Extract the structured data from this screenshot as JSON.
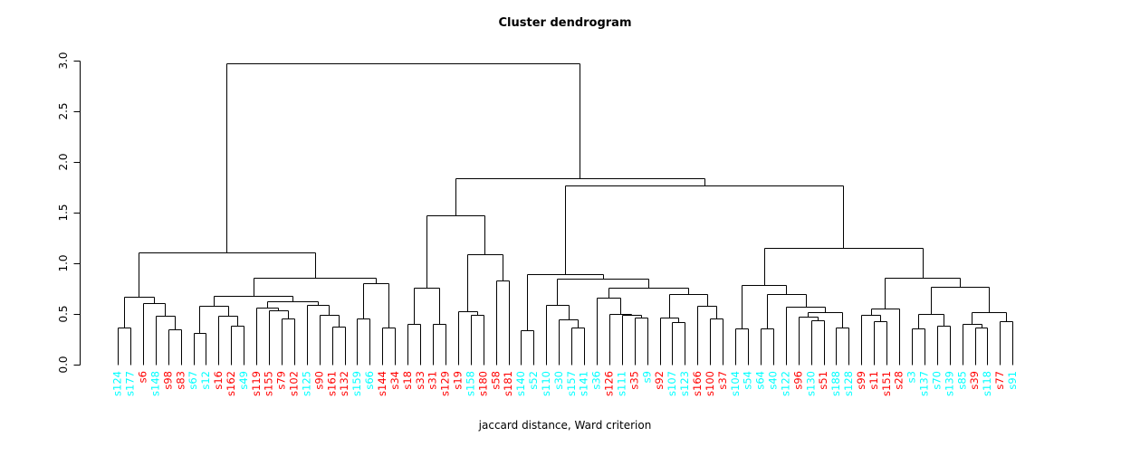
{
  "chart_data": {
    "type": "dendrogram",
    "title": "Cluster dendrogram",
    "xlabel": "jaccard distance, Ward criterion",
    "ylabel": "",
    "ylim": [
      0,
      3
    ],
    "yticks": [
      "0.0",
      "0.5",
      "1.0",
      "1.5",
      "2.0",
      "2.5",
      "3.0"
    ],
    "grid": false,
    "line_color": "#000000",
    "root_height": 2.97,
    "palette": {
      "c": "#00FFFF",
      "r": "#FF0000"
    },
    "leaves": [
      {
        "label": "s124",
        "color": "c"
      },
      {
        "label": "s177",
        "color": "c"
      },
      {
        "label": "s6",
        "color": "r"
      },
      {
        "label": "s148",
        "color": "c"
      },
      {
        "label": "s98",
        "color": "r"
      },
      {
        "label": "s83",
        "color": "r"
      },
      {
        "label": "s67",
        "color": "c"
      },
      {
        "label": "s12",
        "color": "c"
      },
      {
        "label": "s16",
        "color": "r"
      },
      {
        "label": "s162",
        "color": "r"
      },
      {
        "label": "s49",
        "color": "c"
      },
      {
        "label": "s119",
        "color": "r"
      },
      {
        "label": "s155",
        "color": "r"
      },
      {
        "label": "s79",
        "color": "r"
      },
      {
        "label": "s102",
        "color": "r"
      },
      {
        "label": "s125",
        "color": "c"
      },
      {
        "label": "s90",
        "color": "r"
      },
      {
        "label": "s161",
        "color": "r"
      },
      {
        "label": "s132",
        "color": "r"
      },
      {
        "label": "s159",
        "color": "c"
      },
      {
        "label": "s66",
        "color": "c"
      },
      {
        "label": "s144",
        "color": "r"
      },
      {
        "label": "s34",
        "color": "r"
      },
      {
        "label": "s18",
        "color": "r"
      },
      {
        "label": "s33",
        "color": "r"
      },
      {
        "label": "s31",
        "color": "r"
      },
      {
        "label": "s129",
        "color": "r"
      },
      {
        "label": "s19",
        "color": "r"
      },
      {
        "label": "s158",
        "color": "c"
      },
      {
        "label": "s180",
        "color": "r"
      },
      {
        "label": "s58",
        "color": "r"
      },
      {
        "label": "s181",
        "color": "r"
      },
      {
        "label": "s140",
        "color": "c"
      },
      {
        "label": "s52",
        "color": "c"
      },
      {
        "label": "s110",
        "color": "c"
      },
      {
        "label": "s30",
        "color": "c"
      },
      {
        "label": "s157",
        "color": "c"
      },
      {
        "label": "s141",
        "color": "c"
      },
      {
        "label": "s36",
        "color": "c"
      },
      {
        "label": "s126",
        "color": "r"
      },
      {
        "label": "s111",
        "color": "c"
      },
      {
        "label": "s35",
        "color": "r"
      },
      {
        "label": "s9",
        "color": "c"
      },
      {
        "label": "s92",
        "color": "r"
      },
      {
        "label": "s107",
        "color": "c"
      },
      {
        "label": "s123",
        "color": "c"
      },
      {
        "label": "s166",
        "color": "r"
      },
      {
        "label": "s100",
        "color": "r"
      },
      {
        "label": "s37",
        "color": "r"
      },
      {
        "label": "s104",
        "color": "c"
      },
      {
        "label": "s54",
        "color": "c"
      },
      {
        "label": "s64",
        "color": "c"
      },
      {
        "label": "s40",
        "color": "c"
      },
      {
        "label": "s122",
        "color": "c"
      },
      {
        "label": "s96",
        "color": "r"
      },
      {
        "label": "s130",
        "color": "c"
      },
      {
        "label": "s51",
        "color": "r"
      },
      {
        "label": "s188",
        "color": "c"
      },
      {
        "label": "s128",
        "color": "c"
      },
      {
        "label": "s99",
        "color": "r"
      },
      {
        "label": "s11",
        "color": "r"
      },
      {
        "label": "s151",
        "color": "r"
      },
      {
        "label": "s28",
        "color": "r"
      },
      {
        "label": "s3",
        "color": "c"
      },
      {
        "label": "s137",
        "color": "c"
      },
      {
        "label": "s70",
        "color": "c"
      },
      {
        "label": "s139",
        "color": "c"
      },
      {
        "label": "s85",
        "color": "c"
      },
      {
        "label": "s39",
        "color": "r"
      },
      {
        "label": "s118",
        "color": "c"
      },
      {
        "label": "s77",
        "color": "r"
      },
      {
        "label": "s91",
        "color": "c"
      }
    ],
    "tree": [
      2.97,
      [
        1.11,
        [
          0.67,
          [
            0.37,
            0,
            1
          ],
          [
            0.61,
            2,
            [
              0.48,
              3,
              [
                0.35,
                4,
                5
              ]
            ]
          ]
        ],
        [
          0.86,
          [
            0.68,
            [
              0.58,
              [
                0.31,
                6,
                7
              ],
              [
                0.48,
                8,
                [
                  0.385,
                  9,
                  10
                ]
              ]
            ],
            [
              0.625,
              [
                0.56,
                11,
                [
                  0.535,
                  12,
                  [
                    0.455,
                    13,
                    14
                  ]
                ]
              ],
              [
                0.59,
                15,
                [
                  0.49,
                  16,
                  [
                    0.375,
                    17,
                    18
                  ]
                ]
              ]
            ]
          ],
          [
            0.8,
            [
              0.455,
              19,
              20
            ],
            [
              0.37,
              21,
              22
            ]
          ]
        ]
      ],
      [
        1.84,
        [
          1.47,
          [
            0.76,
            [
              0.4,
              23,
              24
            ],
            [
              0.4,
              25,
              26
            ]
          ],
          [
            1.09,
            [
              0.53,
              27,
              [
                0.49,
                28,
                29
              ]
            ],
            [
              0.83,
              30,
              31
            ]
          ]
        ],
        [
          1.77,
          [
            0.89,
            [
              0.34,
              32,
              33
            ],
            [
              0.85,
              [
                0.59,
                34,
                [
                  0.45,
                  35,
                  [
                    0.37,
                    36,
                    37
                  ]
                ]
              ],
              [
                0.76,
                [
                  0.66,
                  38,
                  [
                    0.5,
                    39,
                    [
                      0.49,
                      40,
                      [
                        0.465,
                        41,
                        42
                      ]
                    ]
                  ]
                ],
                [
                  0.7,
                  [
                    0.46,
                    43,
                    [
                      0.42,
                      44,
                      45
                    ]
                  ],
                  [
                    0.58,
                    46,
                    [
                      0.455,
                      47,
                      48
                    ]
                  ]
                ]
              ]
            ]
          ],
          [
            1.15,
            [
              0.79,
              [
                0.355,
                49,
                50
              ],
              [
                0.7,
                [
                  0.36,
                  51,
                  52
                ],
                [
                  0.57,
                  53,
                  [
                    0.52,
                    [
                      0.47,
                      54,
                      [
                        0.44,
                        55,
                        56
                      ]
                    ],
                    [
                      0.37,
                      57,
                      58
                    ]
                  ]
                ]
              ]
            ],
            [
              0.86,
              [
                0.55,
                [
                  0.49,
                  59,
                  [
                    0.43,
                    60,
                    61
                  ]
                ],
                62
              ],
              [
                0.77,
                [
                  0.5,
                  [
                    0.36,
                    63,
                    64
                  ],
                  [
                    0.385,
                    65,
                    66
                  ]
                ],
                [
                  0.52,
                  [
                    0.4,
                    67,
                    [
                      0.37,
                      68,
                      69
                    ]
                  ],
                  [
                    0.43,
                    70,
                    71
                  ]
                ]
              ]
            ]
          ]
        ]
      ]
    ]
  }
}
